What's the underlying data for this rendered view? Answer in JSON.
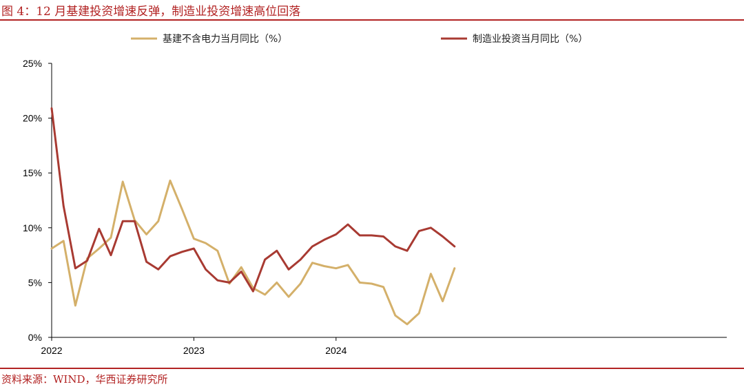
{
  "figure": {
    "title": "图 4：12 月基建投资增速反弹，制造业投资增速高位回落",
    "source": "资料来源：WIND，华西证券研究所"
  },
  "chart_data": {
    "type": "line",
    "title": "图 4：12 月基建投资增速反弹，制造业投资增速高位回落",
    "xlabel": "",
    "ylabel": "",
    "x_tick_labels": [
      "2022",
      "2023",
      "2024"
    ],
    "y_tick_labels": [
      "0%",
      "5%",
      "10%",
      "15%",
      "20%",
      "25%"
    ],
    "ylim": [
      0,
      25
    ],
    "legend_position": "top",
    "grid": false,
    "series": [
      {
        "name": "基建不含电力当月同比（%）",
        "color": "#d4b06a",
        "values": [
          8.1,
          8.8,
          2.9,
          7.2,
          8.1,
          9.1,
          14.2,
          10.7,
          9.4,
          10.6,
          14.3,
          11.7,
          9.0,
          8.6,
          7.9,
          4.9,
          6.4,
          4.5,
          3.9,
          5.0,
          3.7,
          4.9,
          6.8,
          6.5,
          6.3,
          6.6,
          5.0,
          4.9,
          4.6,
          2.0,
          1.2,
          2.2,
          5.8,
          3.3,
          6.3
        ]
      },
      {
        "name": "制造业投资当月同比（%）",
        "color": "#a83a32",
        "values": [
          20.9,
          12.0,
          6.3,
          7.0,
          9.9,
          7.5,
          10.6,
          10.6,
          6.9,
          6.2,
          7.4,
          7.8,
          8.1,
          6.2,
          5.2,
          5.0,
          6.0,
          4.2,
          7.1,
          7.9,
          6.2,
          7.1,
          8.3,
          8.9,
          9.4,
          10.3,
          9.3,
          9.3,
          9.2,
          8.3,
          7.9,
          9.7,
          10.0,
          9.2,
          8.3
        ]
      }
    ]
  }
}
